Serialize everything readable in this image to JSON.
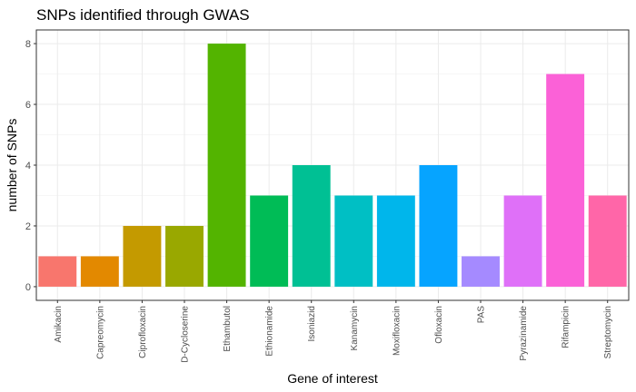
{
  "chart_data": {
    "type": "bar",
    "title": "SNPs identified through GWAS",
    "xlabel": "Gene of interest",
    "ylabel": "number of SNPs",
    "ylim": [
      -0.45,
      8.45
    ],
    "yticks": [
      0,
      2,
      4,
      6,
      8
    ],
    "grid": true,
    "legend": "none",
    "categories": [
      "Amikacin",
      "Capreomycin",
      "Ciprofloxacin",
      "D-Cycloserine",
      "Ethambutol",
      "Ethionamide",
      "Isoniazid",
      "Kanamycin",
      "Moxifloxacin",
      "Ofloxacin",
      "PAS",
      "Pyrazinamide",
      "Rifampicin",
      "Streptomycin"
    ],
    "values": [
      1,
      1,
      2,
      2,
      8,
      3,
      4,
      3,
      3,
      4,
      1,
      3,
      7,
      3
    ],
    "colors": [
      "#F8766D",
      "#E38900",
      "#C49A00",
      "#99A800",
      "#53B400",
      "#00BC56",
      "#00C094",
      "#00BFC4",
      "#00B6EB",
      "#06A4FF",
      "#A58AFF",
      "#DF70F8",
      "#FB61D7",
      "#FF66A8"
    ]
  }
}
